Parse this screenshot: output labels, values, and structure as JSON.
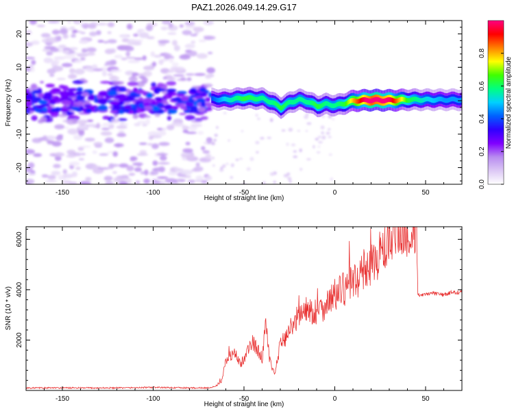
{
  "figure_title": "PAZ1.2026.049.14.29.G17",
  "chart_data": [
    {
      "type": "heatmap",
      "title": "PAZ1.2026.049.14.29.G17",
      "xlabel": "Height of straight line (km)",
      "ylabel": "Frequency (Hz)",
      "xlim": [
        -170,
        70
      ],
      "ylim": [
        -25,
        24
      ],
      "xticks": [
        -150,
        -100,
        -50,
        0,
        50
      ],
      "yticks": [
        -20,
        -10,
        0,
        10,
        20
      ],
      "colorbar": {
        "label": "Normalized spectral amplitude",
        "range": [
          0,
          1
        ],
        "ticks": [
          0.0,
          0.2,
          0.4,
          0.6,
          0.8
        ],
        "colors": [
          "#ffffff",
          "#dcc8f5",
          "#b88cf0",
          "#8000ff",
          "#3000ff",
          "#0060ff",
          "#00d0ff",
          "#00ff80",
          "#40ff00",
          "#ffff00",
          "#ff8000",
          "#ff0000",
          "#ff0080"
        ]
      },
      "ridge": {
        "x": [
          -68,
          -60,
          -50,
          -40,
          -35,
          -30,
          -25,
          -20,
          -15,
          -10,
          -5,
          0,
          5,
          10,
          20,
          30,
          40,
          50,
          60,
          70
        ],
        "freq": [
          0.5,
          0.3,
          0.8,
          0.6,
          -0.5,
          -2.0,
          -0.5,
          0.3,
          -0.3,
          -1.6,
          -1.0,
          -1.4,
          -0.8,
          0.0,
          0.2,
          0.1,
          0.3,
          0.3,
          0.3,
          0.3
        ],
        "amplitude": [
          0.35,
          0.45,
          0.55,
          0.5,
          0.5,
          0.55,
          0.5,
          0.5,
          0.5,
          0.55,
          0.5,
          0.5,
          0.55,
          0.7,
          0.95,
          0.85,
          0.55,
          0.45,
          0.4,
          0.4
        ]
      },
      "noise_region": {
        "x_range": [
          -170,
          -68
        ],
        "freq_range": [
          -25,
          24
        ],
        "band_center_freq": 0,
        "band_amplitude": 0.3
      }
    },
    {
      "type": "line",
      "xlabel": "Height of straight line (km)",
      "ylabel": "SNR (10 * v/v)",
      "xlim": [
        -170,
        70
      ],
      "ylim": [
        0,
        6500
      ],
      "xticks": [
        -150,
        -100,
        -50,
        0,
        50
      ],
      "yticks": [
        2000,
        4000,
        6000
      ],
      "series": [
        {
          "name": "SNR",
          "color": "#e83030",
          "x": [
            -170,
            -150,
            -120,
            -100,
            -80,
            -70,
            -66,
            -62,
            -60,
            -55,
            -52,
            -48,
            -45,
            -40,
            -38,
            -36,
            -33,
            -30,
            -28,
            -25,
            -20,
            -15,
            -10,
            -5,
            0,
            5,
            10,
            15,
            20,
            25,
            30,
            35,
            40,
            44,
            45,
            46,
            50,
            55,
            60,
            65,
            70
          ],
          "values": [
            100,
            100,
            100,
            120,
            100,
            100,
            150,
            400,
            1200,
            1500,
            1000,
            1600,
            1900,
            1300,
            2700,
            1200,
            600,
            1900,
            2000,
            2400,
            3000,
            3200,
            3100,
            3400,
            3800,
            4000,
            4300,
            4600,
            5000,
            5400,
            5800,
            6100,
            6200,
            6300,
            6400,
            3800,
            3800,
            3850,
            3800,
            3900,
            3900
          ]
        }
      ]
    }
  ]
}
